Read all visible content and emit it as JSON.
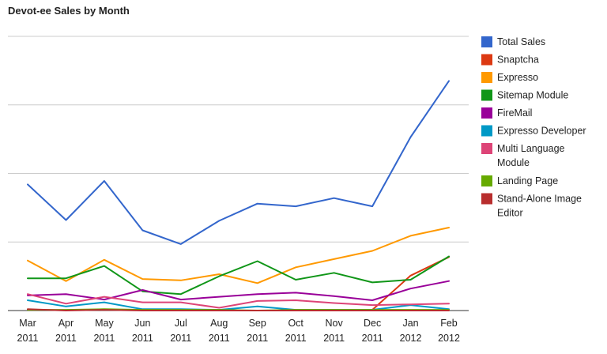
{
  "chart_data": {
    "type": "line",
    "title": "Devot-ee Sales by Month",
    "xlabel": "",
    "ylabel": "",
    "categories": [
      [
        "Mar",
        "2011"
      ],
      [
        "Apr",
        "2011"
      ],
      [
        "May",
        "2011"
      ],
      [
        "Jun",
        "2011"
      ],
      [
        "Jul",
        "2011"
      ],
      [
        "Aug",
        "2011"
      ],
      [
        "Sep",
        "2011"
      ],
      [
        "Oct",
        "2011"
      ],
      [
        "Nov",
        "2011"
      ],
      [
        "Dec",
        "2011"
      ],
      [
        "Jan",
        "2012"
      ],
      [
        "Feb",
        "2012"
      ]
    ],
    "ylim": [
      0,
      400
    ],
    "gridlines": [
      0,
      100,
      200,
      300,
      400
    ],
    "grid": true,
    "legend_position": "right",
    "series": [
      {
        "name": "Total Sales",
        "color": "#3366cc",
        "values": [
          184,
          132,
          189,
          117,
          97,
          131,
          156,
          152,
          164,
          152,
          253,
          335
        ]
      },
      {
        "name": "Snaptcha",
        "color": "#dc3912",
        "values": [
          null,
          null,
          null,
          null,
          null,
          null,
          null,
          null,
          null,
          1,
          51,
          78
        ]
      },
      {
        "name": "Expresso",
        "color": "#ff9900",
        "values": [
          73,
          43,
          74,
          46,
          44,
          53,
          40,
          63,
          75,
          87,
          109,
          121
        ]
      },
      {
        "name": "Sitemap Module",
        "color": "#109618",
        "values": [
          47,
          47,
          65,
          28,
          24,
          50,
          72,
          45,
          55,
          41,
          45,
          79
        ]
      },
      {
        "name": "FireMail",
        "color": "#990099",
        "values": [
          22,
          24,
          16,
          30,
          16,
          20,
          24,
          26,
          21,
          15,
          32,
          43
        ]
      },
      {
        "name": "Expresso Developer",
        "color": "#0099c6",
        "values": [
          15,
          6,
          12,
          2,
          2,
          1,
          6,
          1,
          1,
          1,
          8,
          2
        ]
      },
      {
        "name": "Multi Language Module",
        "color": "#dd4477",
        "values": [
          24,
          10,
          20,
          12,
          12,
          4,
          14,
          15,
          11,
          8,
          9,
          10
        ]
      },
      {
        "name": "Landing Page",
        "color": "#66aa00",
        "values": [
          1,
          1,
          2,
          1,
          1,
          1,
          0,
          1,
          1,
          1,
          1,
          1
        ]
      },
      {
        "name": "Stand-Alone Image Editor",
        "color": "#b82e2e",
        "values": [
          2,
          0,
          1,
          0,
          0,
          0,
          0,
          0,
          0,
          0,
          0,
          0
        ]
      }
    ],
    "legend": [
      {
        "color": "#3366cc",
        "lines": [
          "Total Sales"
        ]
      },
      {
        "color": "#dc3912",
        "lines": [
          "Snaptcha"
        ]
      },
      {
        "color": "#ff9900",
        "lines": [
          "Expresso"
        ]
      },
      {
        "color": "#109618",
        "lines": [
          "Sitemap Module"
        ]
      },
      {
        "color": "#990099",
        "lines": [
          "FireMail"
        ]
      },
      {
        "color": "#0099c6",
        "lines": [
          "Expresso Developer"
        ]
      },
      {
        "color": "#dd4477",
        "lines": [
          "Multi Language",
          "Module"
        ]
      },
      {
        "color": "#66aa00",
        "lines": [
          "Landing Page"
        ]
      },
      {
        "color": "#b82e2e",
        "lines": [
          "Stand-Alone Image",
          "Editor"
        ]
      }
    ]
  }
}
